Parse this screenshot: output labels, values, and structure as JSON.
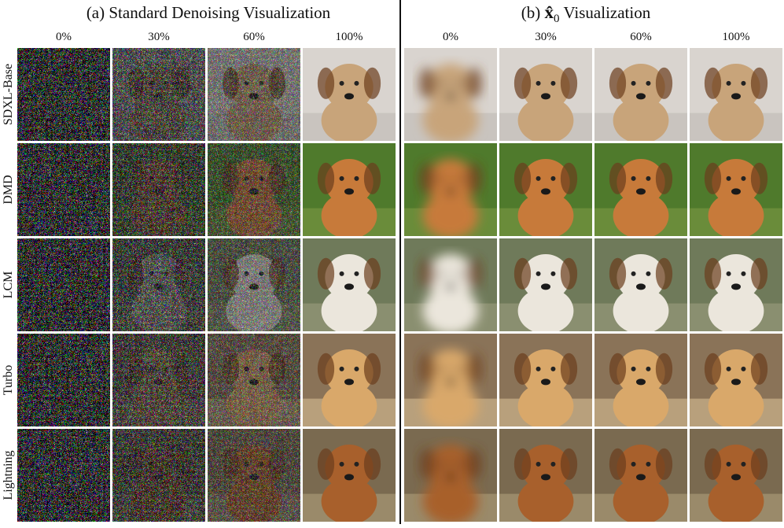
{
  "panels": [
    {
      "title": "(a) Standard Denoising Visualization",
      "columns": [
        "0%",
        "30%",
        "60%",
        "100%"
      ]
    },
    {
      "title_prefix": "(b)",
      "title_symbol": "x̂",
      "title_subscript": "0",
      "title_suffix": "Visualization",
      "columns": [
        "0%",
        "30%",
        "60%",
        "100%"
      ]
    }
  ],
  "rows": [
    "SDXL-Base",
    "DMD",
    "LCM",
    "Turbo",
    "Lightning"
  ]
}
